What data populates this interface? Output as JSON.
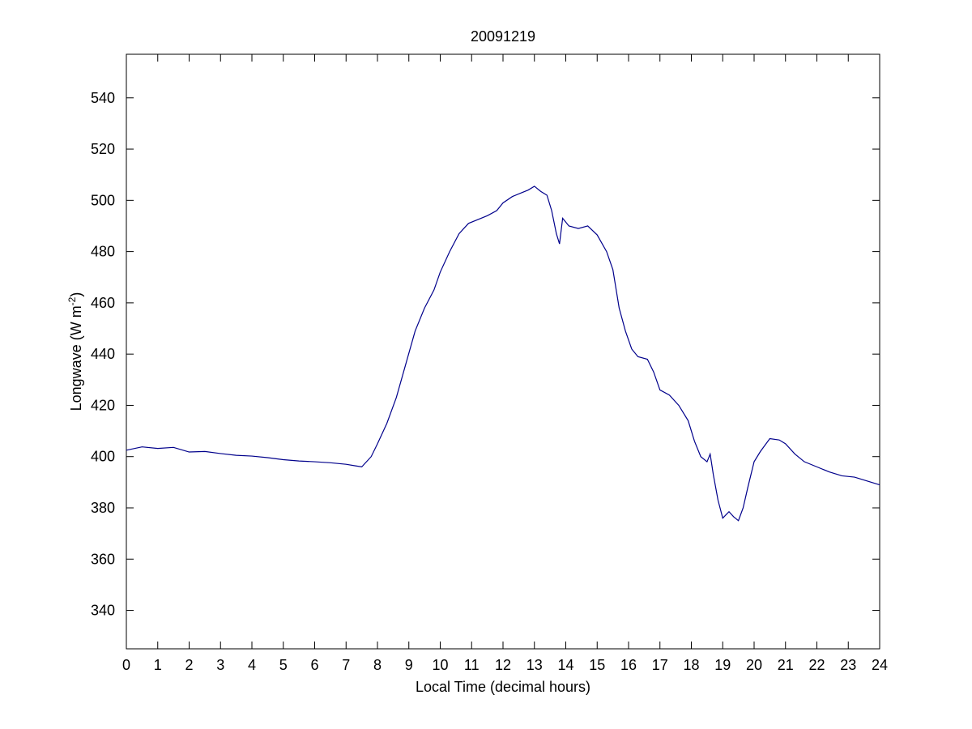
{
  "chart_data": {
    "type": "line",
    "title": "20091219",
    "xlabel": "Local Time (decimal hours)",
    "ylabel": {
      "main": "Longwave (W m",
      "superscript": "-2",
      "close": ")"
    },
    "xlim": [
      0,
      24
    ],
    "ylim": [
      325,
      557
    ],
    "xticks": [
      0,
      1,
      2,
      3,
      4,
      5,
      6,
      7,
      8,
      9,
      10,
      11,
      12,
      13,
      14,
      15,
      16,
      17,
      18,
      19,
      20,
      21,
      22,
      23,
      24
    ],
    "yticks": [
      340,
      360,
      380,
      400,
      420,
      440,
      460,
      480,
      500,
      520,
      540
    ],
    "grid": false,
    "line_color": "#00008b",
    "series": [
      {
        "x": [
          0.0,
          0.5,
          1.0,
          1.5,
          2.0,
          2.5,
          3.0,
          3.5,
          4.0,
          4.5,
          5.0,
          5.5,
          6.0,
          6.5,
          7.0,
          7.3,
          7.5,
          7.8,
          8.0,
          8.3,
          8.6,
          8.9,
          9.2,
          9.5,
          9.8,
          10.0,
          10.3,
          10.6,
          10.9,
          11.2,
          11.5,
          11.8,
          12.0,
          12.3,
          12.6,
          12.8,
          13.0,
          13.2,
          13.4,
          13.55,
          13.7,
          13.8,
          13.9,
          14.1,
          14.4,
          14.7,
          15.0,
          15.3,
          15.5,
          15.7,
          15.9,
          16.1,
          16.3,
          16.6,
          16.8,
          17.0,
          17.3,
          17.6,
          17.9,
          18.1,
          18.3,
          18.5,
          18.6,
          18.7,
          18.85,
          19.0,
          19.2,
          19.35,
          19.5,
          19.65,
          19.8,
          20.0,
          20.2,
          20.5,
          20.8,
          21.0,
          21.3,
          21.6,
          22.0,
          22.4,
          22.8,
          23.2,
          23.6,
          24.0
        ],
        "y": [
          402.5,
          403.8,
          403.2,
          403.6,
          401.8,
          402.0,
          401.2,
          400.5,
          400.2,
          399.6,
          398.8,
          398.3,
          398.0,
          397.6,
          397.0,
          396.4,
          396.0,
          400.0,
          405.0,
          413.0,
          423.0,
          436.0,
          449.0,
          458.0,
          465.0,
          472.0,
          480.0,
          487.0,
          491.0,
          492.5,
          494.0,
          496.0,
          499.0,
          501.5,
          503.0,
          504.0,
          505.5,
          503.5,
          502.0,
          496.0,
          487.0,
          483.0,
          493.0,
          490.0,
          489.0,
          490.0,
          486.5,
          480.0,
          473.0,
          458.0,
          449.0,
          442.0,
          439.0,
          438.0,
          433.0,
          426.0,
          424.0,
          420.0,
          414.0,
          406.0,
          400.0,
          398.0,
          401.0,
          393.0,
          383.0,
          376.0,
          378.5,
          376.5,
          375.0,
          380.0,
          388.0,
          398.0,
          402.0,
          407.0,
          406.5,
          405.0,
          401.0,
          398.0,
          396.0,
          394.0,
          392.5,
          392.0,
          390.5,
          389.0
        ]
      }
    ]
  }
}
